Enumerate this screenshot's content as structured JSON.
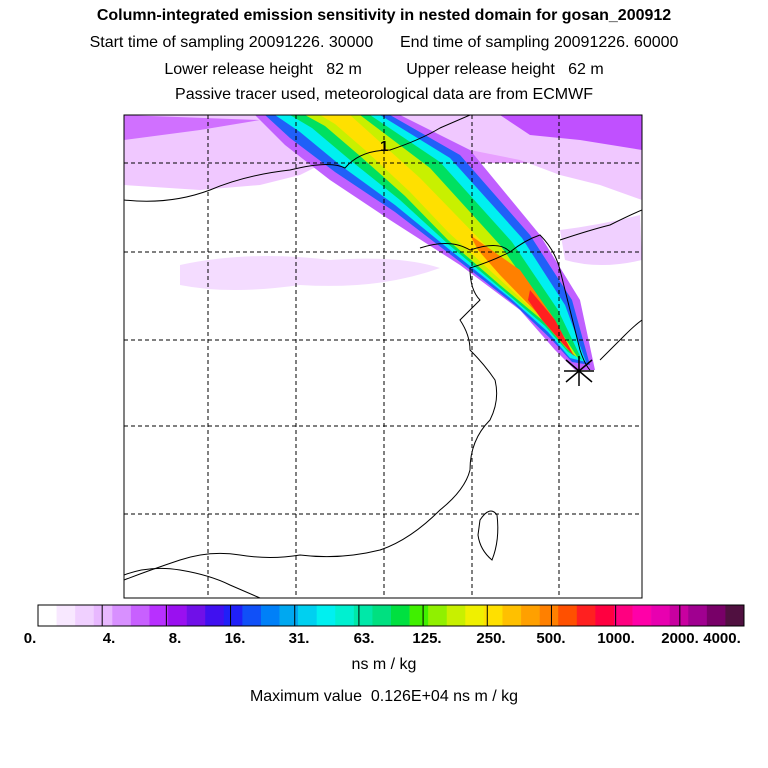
{
  "header": {
    "title": "Column-integrated emission sensitivity in nested domain for gosan_200912",
    "sampling": "Start time of sampling 20091226. 30000      End time of sampling 20091226. 60000",
    "heights": "Lower release height   82 m          Upper release height   62 m",
    "tracer": "Passive tracer used, meteorological data are from ECMWF"
  },
  "map": {
    "contour_label": "1",
    "release_site_marker": "star-marker",
    "colors": {
      "low": "#f0c8ff",
      "mid": "#00ffd0",
      "high": "#ff2020",
      "frame": "#000000"
    }
  },
  "colorbar": {
    "tick_labels": [
      "0.",
      "4.",
      "8.",
      "16.",
      "31.",
      "63.",
      "125.",
      "250.",
      "500.",
      "1000.",
      "2000.",
      "4000."
    ],
    "colors": [
      "#ffffff",
      "#f8e8ff",
      "#f0d0ff",
      "#e8b8ff",
      "#d890ff",
      "#c860ff",
      "#b830ff",
      "#9a10f0",
      "#7010e8",
      "#4010f0",
      "#2020f8",
      "#1050f8",
      "#0080f8",
      "#00a8f0",
      "#00d0f0",
      "#00f0f0",
      "#00f0d0",
      "#00e8a8",
      "#00e080",
      "#00e040",
      "#40f000",
      "#90f000",
      "#c8f000",
      "#f0f000",
      "#ffe000",
      "#ffc000",
      "#ffa000",
      "#ff8000",
      "#ff5000",
      "#ff2020",
      "#ff0040",
      "#ff0080",
      "#ff00a8",
      "#e800b0",
      "#c800a0",
      "#a00090",
      "#780068",
      "#501040"
    ],
    "units": "ns m / kg"
  },
  "footer": {
    "max_value": "Maximum value  0.126E+04 ns m / kg"
  }
}
